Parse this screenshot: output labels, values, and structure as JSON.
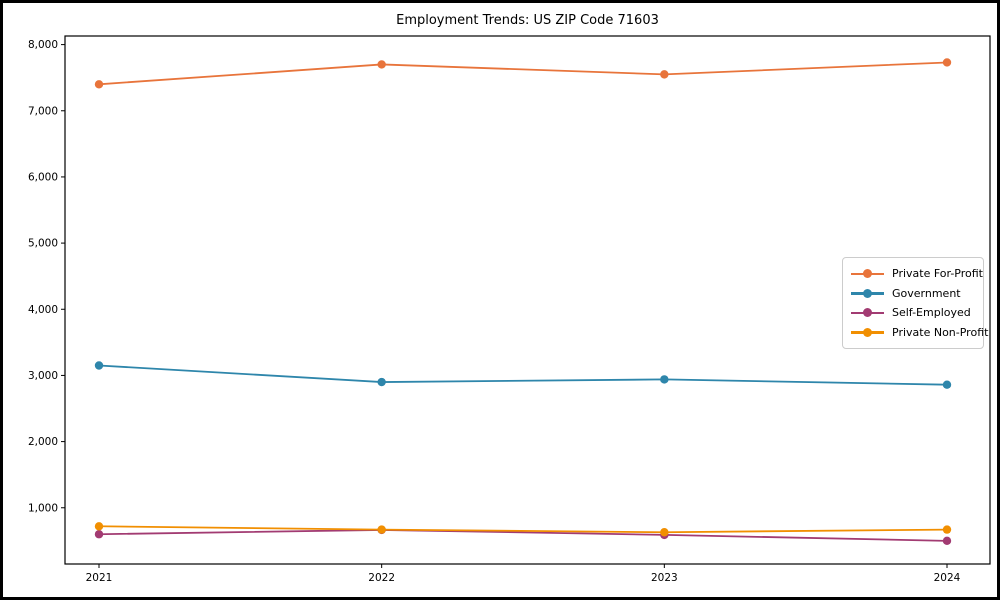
{
  "chart_data": {
    "type": "line",
    "title": "Employment Trends: US ZIP Code 71603",
    "x": [
      2021,
      2022,
      2023,
      2024
    ],
    "x_tick_labels": [
      "2021",
      "2022",
      "2023",
      "2024"
    ],
    "y_ticks": [
      1000,
      2000,
      3000,
      4000,
      5000,
      6000,
      7000,
      8000
    ],
    "y_tick_labels": [
      "1,000",
      "2,000",
      "3,000",
      "4,000",
      "5,000",
      "6,000",
      "7,000",
      "8,000"
    ],
    "xlabel": "",
    "ylabel": "",
    "ylim": [
      150,
      8130
    ],
    "grid": false,
    "legend_position": "right-center",
    "series": [
      {
        "name": "Private For-Profit",
        "color": "#E8743B",
        "values": [
          7400,
          7700,
          7550,
          7730
        ]
      },
      {
        "name": "Government",
        "color": "#2E86AB",
        "values": [
          3150,
          2900,
          2940,
          2860
        ]
      },
      {
        "name": "Self-Employed",
        "color": "#A23B72",
        "values": [
          600,
          665,
          590,
          500
        ]
      },
      {
        "name": "Private Non-Profit",
        "color": "#F18F01",
        "values": [
          720,
          670,
          630,
          670
        ]
      }
    ]
  }
}
